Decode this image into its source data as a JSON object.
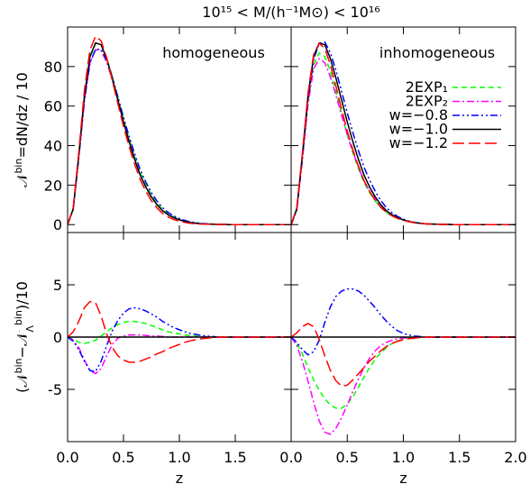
{
  "chart_data": [
    {
      "type": "line",
      "title": "10¹⁵ < M/(h⁻¹M⊙) < 10¹⁶",
      "annotation": "homogeneous",
      "ylabel": [
        {
          "text": "𝒩",
          "shift": "none"
        },
        {
          "text": "bin",
          "shift": "super"
        },
        {
          "text": "=dN/dz / 10",
          "shift": "none"
        }
      ],
      "x": [
        0,
        0.05,
        0.1,
        0.15,
        0.2,
        0.25,
        0.3,
        0.35,
        0.4,
        0.45,
        0.5,
        0.55,
        0.6,
        0.65,
        0.7,
        0.75,
        0.8,
        0.85,
        0.9,
        0.95,
        1.0,
        1.05,
        1.1,
        1.15,
        1.2,
        1.25,
        1.3,
        1.35,
        1.4,
        1.45,
        1.5,
        2.0
      ],
      "xlim": [
        0,
        2
      ],
      "ylim": [
        -4,
        100
      ],
      "xticks": [
        0,
        0.5,
        1,
        1.5,
        2
      ],
      "yticks": [
        0,
        20,
        40,
        60,
        80
      ],
      "xtick_labels": false,
      "ytick_labels": true,
      "series": [
        {
          "color": "#00ff00",
          "dash": "dashed",
          "values": [
            0,
            7.8,
            34.5,
            64.4,
            84.5,
            91.7,
            91.1,
            84.5,
            74.9,
            64.2,
            53.4,
            43.5,
            34.5,
            26.4,
            20.3,
            15.1,
            10.9,
            7.7,
            5.5,
            3.9,
            2.7,
            1.8,
            1.15,
            0.8,
            0.45,
            0.3,
            0.2,
            0.1,
            0.1,
            0,
            0,
            0
          ]
        },
        {
          "color": "#ff00ff",
          "dash": "dashdot",
          "values": [
            0,
            7.7,
            34,
            62.8,
            81.8,
            88.5,
            88,
            82.2,
            73.3,
            62.9,
            52.1,
            42.2,
            33.2,
            25.2,
            19.15,
            14.1,
            10.1,
            7.05,
            5,
            3.5,
            2.4,
            1.6,
            1.0,
            0.7,
            0.4,
            0.3,
            0.2,
            0.1,
            0.1,
            0,
            0,
            0
          ]
        },
        {
          "color": "#0000ff",
          "dash": "dashdotdot",
          "values": [
            0,
            7.6,
            33.8,
            62.7,
            81.8,
            88.7,
            88.7,
            83.2,
            74.6,
            64.6,
            54.3,
            44.7,
            35.8,
            27.7,
            21.5,
            16.2,
            11.9,
            8.5,
            6.2,
            4.4,
            3.1,
            2.1,
            1.35,
            0.95,
            0.55,
            0.4,
            0.25,
            0.1,
            0.1,
            0,
            0,
            0
          ]
        },
        {
          "color": "#000000",
          "dash": "solid",
          "values": [
            0,
            8,
            35,
            65,
            85,
            92,
            91,
            84,
            74,
            63,
            52,
            42,
            33,
            25,
            19,
            14,
            10,
            7,
            5,
            3.5,
            2.4,
            1.6,
            1.0,
            0.7,
            0.4,
            0.3,
            0.2,
            0.1,
            0.1,
            0,
            0,
            0
          ]
        },
        {
          "color": "#ff0000",
          "dash": "longdash",
          "values": [
            0,
            8.5,
            36.5,
            67.8,
            88.4,
            95.3,
            93,
            84.3,
            73,
            61.2,
            49.8,
            39.6,
            30.6,
            22.7,
            16.9,
            12.1,
            8.4,
            5.6,
            3.9,
            2.6,
            1.7,
            1.1,
            0.65,
            0.45,
            0.25,
            0.2,
            0.15,
            0.1,
            0.1,
            0,
            0,
            0
          ]
        }
      ]
    },
    {
      "type": "line",
      "annotation": "inhomogeneous",
      "legend": "upper right",
      "x": [
        0,
        0.05,
        0.1,
        0.15,
        0.2,
        0.25,
        0.3,
        0.35,
        0.4,
        0.45,
        0.5,
        0.55,
        0.6,
        0.65,
        0.7,
        0.75,
        0.8,
        0.85,
        0.9,
        0.95,
        1.0,
        1.05,
        1.1,
        1.15,
        1.2,
        1.25,
        1.3,
        1.35,
        1.4,
        1.45,
        1.5,
        2.0
      ],
      "xlim": [
        0,
        2
      ],
      "ylim": [
        -4,
        100
      ],
      "xticks": [
        0,
        0.5,
        1,
        1.5,
        2
      ],
      "yticks": [
        0,
        20,
        40,
        60,
        80
      ],
      "xtick_labels": false,
      "ytick_labels": false,
      "series": [
        {
          "name": "2EXP₁",
          "color": "#00ff00",
          "dash": "dashed",
          "values": [
            0,
            7.4,
            33.4,
            62.1,
            80.9,
            86.9,
            85.1,
            77.5,
            67.2,
            56.2,
            45.6,
            36.3,
            28.2,
            21.2,
            16.1,
            11.9,
            8.5,
            6,
            4.4,
            3.15,
            2.2,
            1.5,
            0.95,
            0.7,
            0.4,
            0.3,
            0.2,
            0.1,
            0.1,
            0,
            0,
            0
          ]
        },
        {
          "name": "2EXP₂",
          "color": "#ff00ff",
          "dash": "dashdot",
          "values": [
            0,
            7.2,
            32.7,
            60.8,
            78.8,
            84,
            81.9,
            74.7,
            65.3,
            55.3,
            45.5,
            36.8,
            29,
            22.1,
            17,
            12.7,
            9.2,
            6.5,
            4.7,
            3.35,
            2.3,
            1.55,
            1.0,
            0.7,
            0.4,
            0.3,
            0.2,
            0.1,
            0.1,
            0,
            0,
            0
          ]
        },
        {
          "name": "w=−0.8",
          "color": "#0000ff",
          "dash": "dashdotdot",
          "values": [
            0,
            7.5,
            33.8,
            63.3,
            83.6,
            91.7,
            92.4,
            86.9,
            77.9,
            67.4,
            56.6,
            46.6,
            37.4,
            29,
            22.4,
            16.8,
            12.1,
            8.5,
            6,
            4.1,
            2.75,
            1.8,
            1.1,
            0.75,
            0.4,
            0.3,
            0.2,
            0.1,
            0.1,
            0,
            0,
            0
          ]
        },
        {
          "name": "w=−1.0",
          "color": "#000000",
          "dash": "solid",
          "values": [
            0,
            8,
            35,
            65,
            85,
            92,
            91,
            84,
            74,
            63,
            52,
            42,
            33,
            25,
            19,
            14,
            10,
            7,
            5,
            3.5,
            2.4,
            1.6,
            1.0,
            0.7,
            0.4,
            0.3,
            0.2,
            0.1,
            0.1,
            0,
            0,
            0
          ]
        },
        {
          "name": "w=−1.2",
          "color": "#ff0000",
          "dash": "longdash",
          "values": [
            0,
            8.4,
            36,
            66.3,
            86,
            91.8,
            89.2,
            80.8,
            69.8,
            58.3,
            47.4,
            37.9,
            29.5,
            22.1,
            16.7,
            12.2,
            8.7,
            6.1,
            4.4,
            3.1,
            2.15,
            1.45,
            0.9,
            0.65,
            0.4,
            0.3,
            0.2,
            0.1,
            0.1,
            0,
            0,
            0
          ]
        }
      ]
    },
    {
      "type": "line",
      "xlabel": "z",
      "ylabel": [
        {
          "text": "(𝒩",
          "shift": "none"
        },
        {
          "text": "bin",
          "shift": "super"
        },
        {
          "text": "−𝒩",
          "shift": "none"
        },
        {
          "text": "Λ",
          "shift": "sub"
        },
        {
          "text": "bin",
          "shift": "super"
        },
        {
          "text": ")/10",
          "shift": "none"
        }
      ],
      "x": [
        0,
        0.05,
        0.1,
        0.15,
        0.2,
        0.25,
        0.3,
        0.35,
        0.4,
        0.45,
        0.5,
        0.55,
        0.6,
        0.65,
        0.7,
        0.75,
        0.8,
        0.85,
        0.9,
        0.95,
        1.0,
        1.05,
        1.1,
        1.15,
        1.2,
        1.25,
        1.3,
        1.35,
        1.4,
        1.45,
        1.5,
        2.0
      ],
      "xlim": [
        0,
        2
      ],
      "ylim": [
        -10,
        10
      ],
      "xticks": [
        {
          "value": 0,
          "label": "0.0"
        },
        {
          "value": 0.5,
          "label": "0.5"
        },
        {
          "value": 1,
          "label": "1.0"
        },
        {
          "value": 1.5,
          "label": "1.5"
        }
      ],
      "yticks": [
        -5,
        0,
        5
      ],
      "xtick_labels": true,
      "ytick_labels": true,
      "series": [
        {
          "color": "#00ff00",
          "dash": "dashed",
          "values": [
            0,
            -0.2,
            -0.5,
            -0.6,
            -0.5,
            -0.3,
            0.1,
            0.5,
            0.9,
            1.2,
            1.4,
            1.5,
            1.5,
            1.4,
            1.3,
            1.1,
            0.9,
            0.7,
            0.5,
            0.4,
            0.3,
            0.2,
            0.15,
            0.1,
            0.05,
            0,
            0,
            0,
            0,
            0,
            0,
            0
          ]
        },
        {
          "color": "#ff00ff",
          "dash": "dashdot",
          "values": [
            0,
            -0.3,
            -1.0,
            -2.2,
            -3.2,
            -3.5,
            -3.0,
            -1.8,
            -0.7,
            -0.1,
            0.1,
            0.2,
            0.2,
            0.2,
            0.15,
            0.1,
            0.1,
            0.05,
            0,
            0,
            0,
            0,
            0,
            0,
            0,
            0,
            0,
            0,
            0,
            0,
            0,
            0
          ]
        },
        {
          "color": "#0000ff",
          "dash": "dashdotdot",
          "values": [
            0,
            -0.4,
            -1.2,
            -2.3,
            -3.2,
            -3.3,
            -2.3,
            -0.8,
            0.6,
            1.6,
            2.3,
            2.7,
            2.8,
            2.7,
            2.5,
            2.2,
            1.9,
            1.5,
            1.2,
            0.9,
            0.7,
            0.5,
            0.35,
            0.25,
            0.15,
            0.1,
            0.05,
            0,
            0,
            0,
            0,
            0
          ]
        },
        {
          "color": "#000000",
          "dash": "solid",
          "values": [
            0,
            0,
            0,
            0,
            0,
            0,
            0,
            0,
            0,
            0,
            0,
            0,
            0,
            0,
            0,
            0,
            0,
            0,
            0,
            0,
            0,
            0,
            0,
            0,
            0,
            0,
            0,
            0,
            0,
            0,
            0,
            0
          ]
        },
        {
          "color": "#ff0000",
          "dash": "longdash",
          "values": [
            0,
            0.5,
            1.5,
            2.8,
            3.4,
            3.3,
            2.0,
            0.3,
            -1.0,
            -1.8,
            -2.2,
            -2.4,
            -2.4,
            -2.3,
            -2.1,
            -1.9,
            -1.6,
            -1.4,
            -1.1,
            -0.9,
            -0.7,
            -0.5,
            -0.35,
            -0.25,
            -0.15,
            -0.1,
            -0.05,
            0,
            0,
            0,
            0,
            0
          ]
        }
      ]
    },
    {
      "type": "line",
      "xlabel": "z",
      "x": [
        0,
        0.05,
        0.1,
        0.15,
        0.2,
        0.25,
        0.3,
        0.35,
        0.4,
        0.45,
        0.5,
        0.55,
        0.6,
        0.65,
        0.7,
        0.75,
        0.8,
        0.85,
        0.9,
        0.95,
        1.0,
        1.05,
        1.1,
        1.15,
        1.2,
        1.25,
        1.3,
        1.35,
        1.4,
        1.45,
        1.5,
        2.0
      ],
      "xlim": [
        0,
        2
      ],
      "ylim": [
        -10,
        10
      ],
      "xticks": [
        {
          "value": 0,
          "label": "0.0"
        },
        {
          "value": 0.5,
          "label": "0.5"
        },
        {
          "value": 1,
          "label": "1.0"
        },
        {
          "value": 1.5,
          "label": "1.5"
        },
        {
          "value": 2,
          "label": "2.0"
        }
      ],
      "yticks": [
        -5,
        0,
        5
      ],
      "xtick_labels": true,
      "ytick_labels": false,
      "series": [
        {
          "color": "#00ff00",
          "dash": "dashed",
          "values": [
            0,
            -0.6,
            -1.6,
            -2.9,
            -4.1,
            -5.1,
            -5.9,
            -6.5,
            -6.8,
            -6.8,
            -6.4,
            -5.7,
            -4.8,
            -3.8,
            -2.9,
            -2.1,
            -1.5,
            -1.0,
            -0.6,
            -0.35,
            -0.2,
            -0.1,
            -0.05,
            0,
            0,
            0,
            0,
            0,
            0,
            0,
            0,
            0
          ]
        },
        {
          "color": "#ff00ff",
          "dash": "dashdot",
          "values": [
            0,
            -0.8,
            -2.3,
            -4.2,
            -6.2,
            -8.0,
            -9.1,
            -9.3,
            -8.7,
            -7.7,
            -6.5,
            -5.2,
            -4.0,
            -2.9,
            -2.0,
            -1.3,
            -0.8,
            -0.5,
            -0.3,
            -0.15,
            -0.1,
            -0.05,
            0,
            0,
            0,
            0,
            0,
            0,
            0,
            0,
            0,
            0
          ]
        },
        {
          "color": "#0000ff",
          "dash": "dashdotdot",
          "values": [
            0,
            -0.5,
            -1.2,
            -1.7,
            -1.4,
            -0.3,
            1.4,
            2.9,
            3.9,
            4.4,
            4.6,
            4.6,
            4.4,
            4.0,
            3.4,
            2.8,
            2.1,
            1.5,
            1.0,
            0.6,
            0.35,
            0.2,
            0.1,
            0.05,
            0,
            0,
            0,
            0,
            0,
            0,
            0,
            0
          ]
        },
        {
          "color": "#000000",
          "dash": "solid",
          "values": [
            0,
            0,
            0,
            0,
            0,
            0,
            0,
            0,
            0,
            0,
            0,
            0,
            0,
            0,
            0,
            0,
            0,
            0,
            0,
            0,
            0,
            0,
            0,
            0,
            0,
            0,
            0,
            0,
            0,
            0,
            0,
            0
          ]
        },
        {
          "color": "#ff0000",
          "dash": "longdash",
          "values": [
            0,
            0.4,
            1.0,
            1.3,
            1.0,
            -0.2,
            -1.8,
            -3.2,
            -4.2,
            -4.7,
            -4.6,
            -4.1,
            -3.5,
            -2.9,
            -2.3,
            -1.8,
            -1.3,
            -0.9,
            -0.6,
            -0.4,
            -0.25,
            -0.15,
            -0.1,
            -0.05,
            0,
            0,
            0,
            0,
            0,
            0,
            0,
            0
          ]
        }
      ]
    }
  ]
}
